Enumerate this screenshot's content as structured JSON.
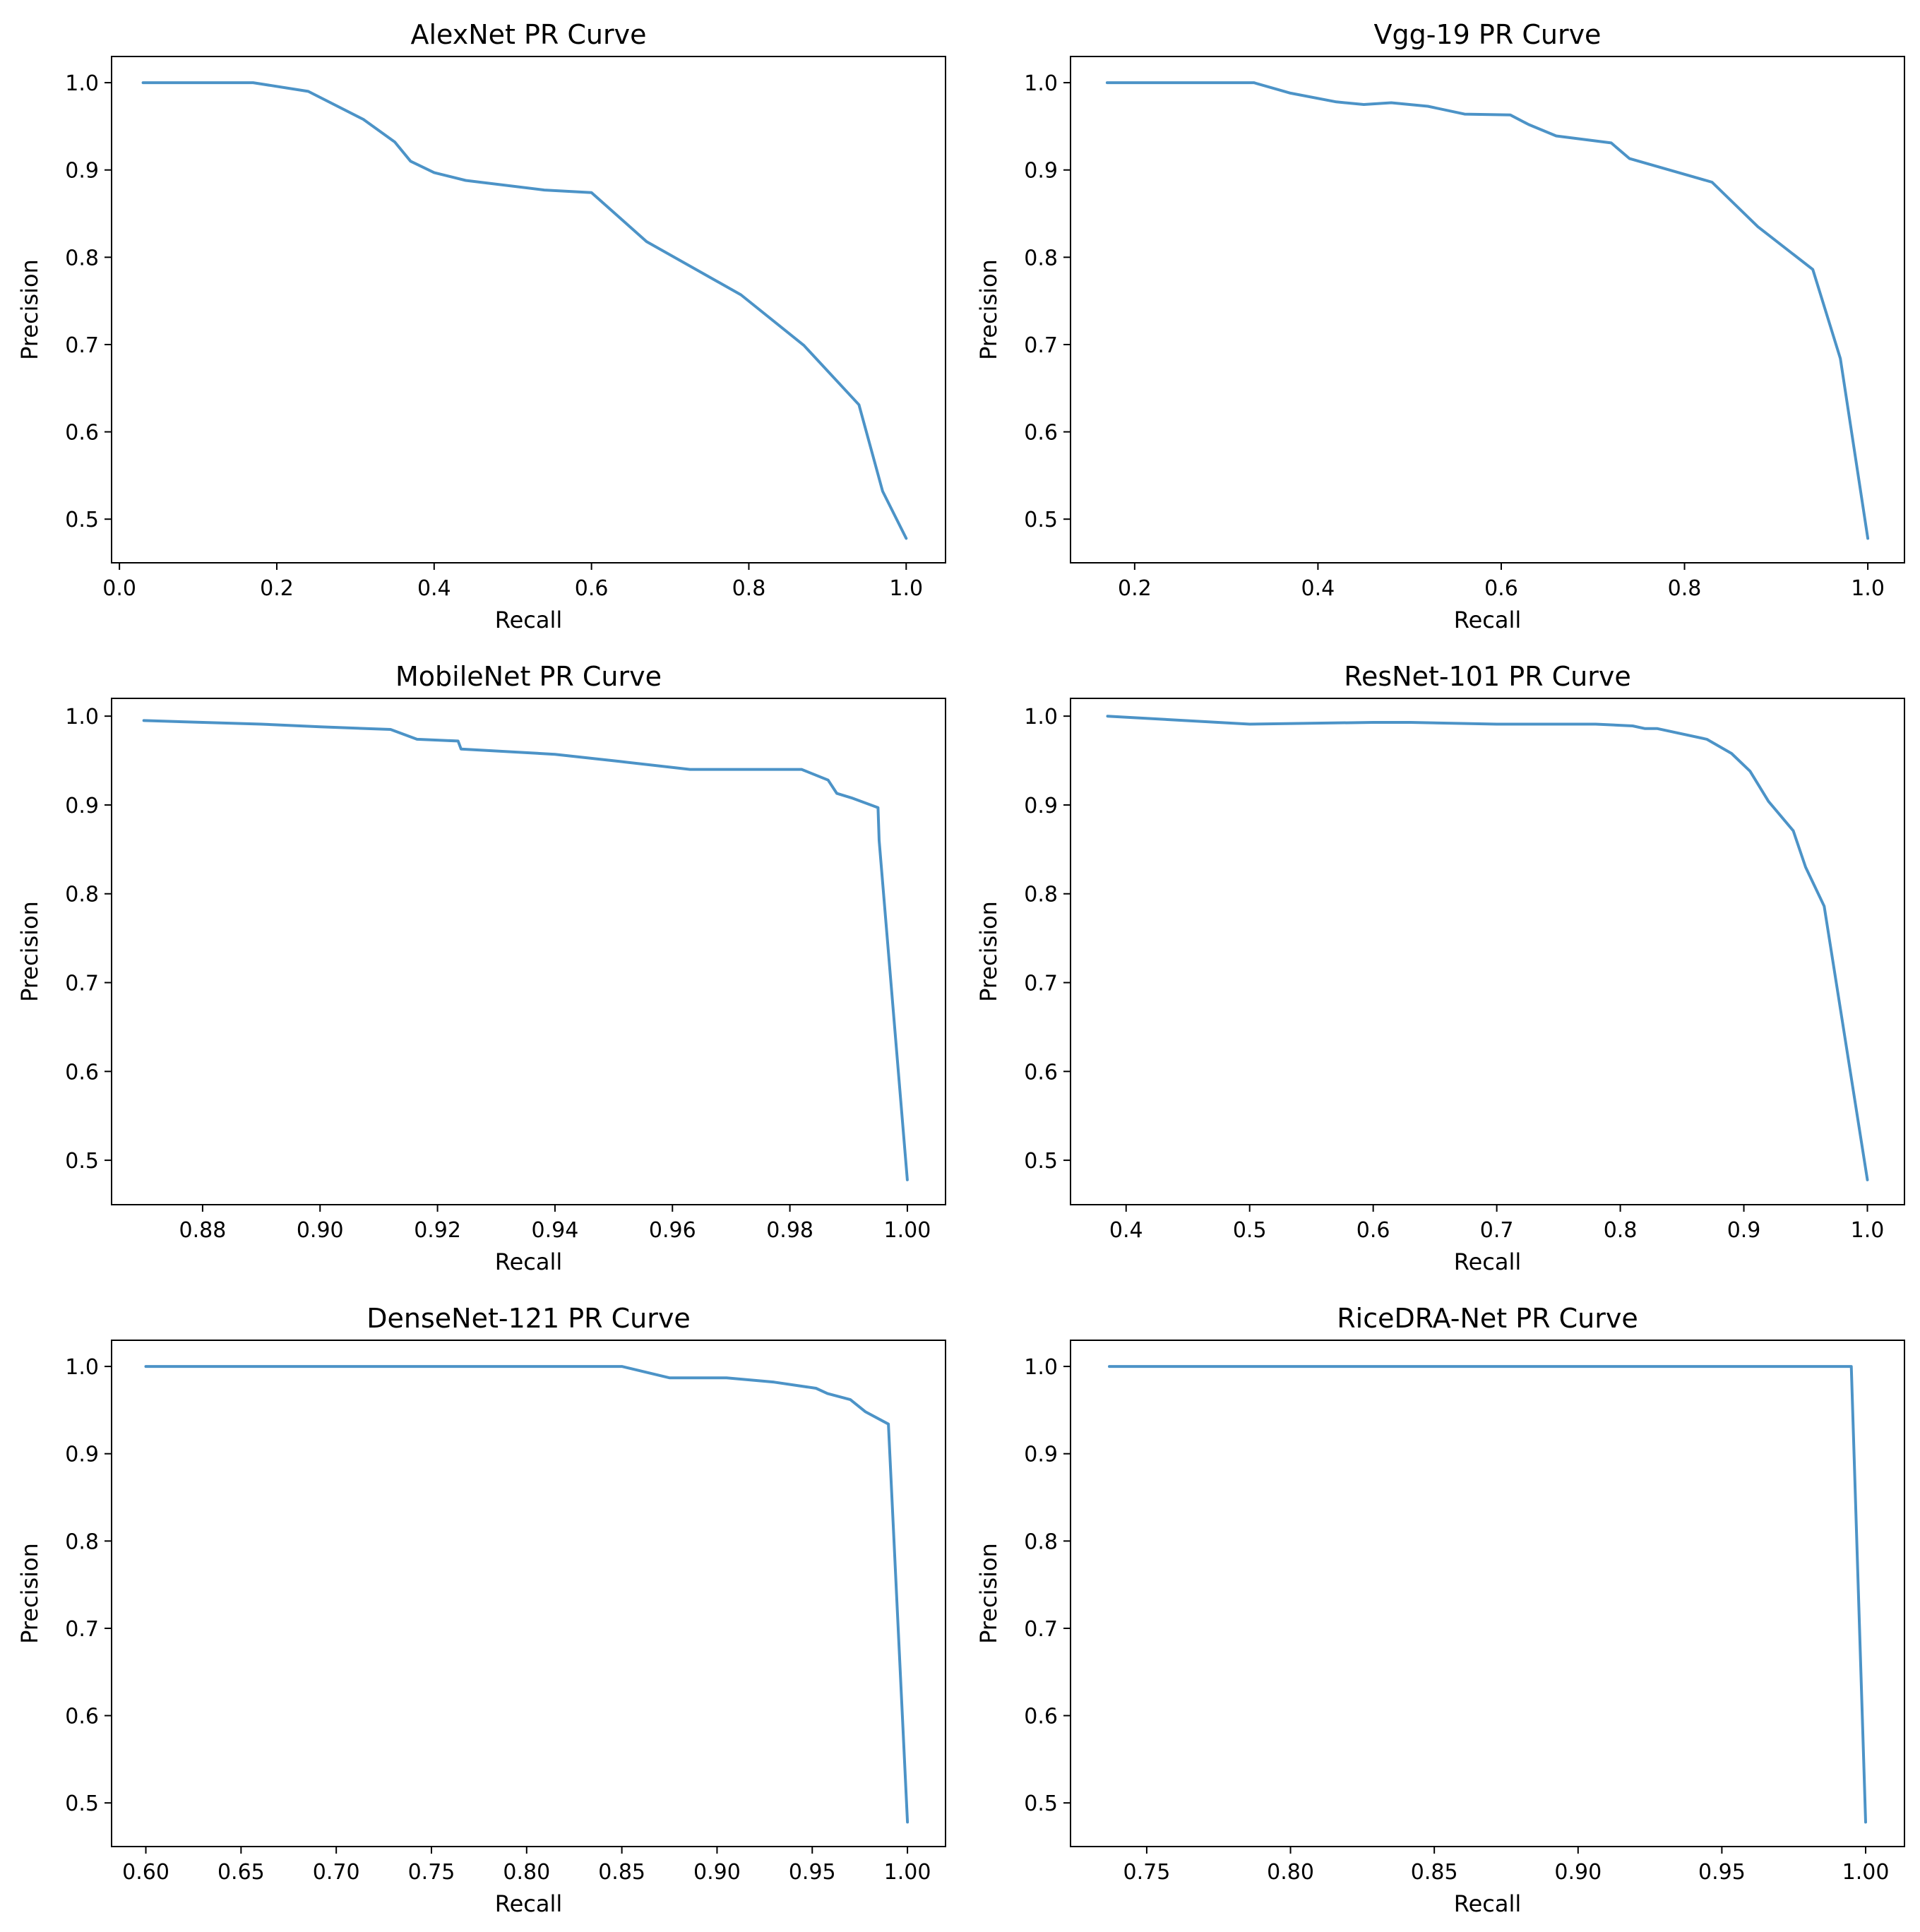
{
  "chart_data": [
    {
      "type": "line",
      "title": "AlexNet PR Curve",
      "xlabel": "Recall",
      "ylabel": "Precision",
      "xlim": [
        -0.01,
        1.05
      ],
      "ylim": [
        0.45,
        1.03
      ],
      "xticks": [
        0.0,
        0.2,
        0.4,
        0.6,
        0.8,
        1.0
      ],
      "xtick_labels": [
        "0.0",
        "0.2",
        "0.4",
        "0.6",
        "0.8",
        "1.0"
      ],
      "yticks": [
        0.5,
        0.6,
        0.7,
        0.8,
        0.9,
        1.0
      ],
      "ytick_labels": [
        "0.5",
        "0.6",
        "0.7",
        "0.8",
        "0.9",
        "1.0"
      ],
      "color": "#4c93c7",
      "x": [
        0.03,
        0.17,
        0.24,
        0.31,
        0.35,
        0.37,
        0.4,
        0.44,
        0.54,
        0.6,
        0.67,
        0.79,
        0.87,
        0.94,
        0.97,
        1.0
      ],
      "y": [
        1.0,
        1.0,
        0.99,
        0.958,
        0.932,
        0.91,
        0.897,
        0.888,
        0.877,
        0.874,
        0.818,
        0.757,
        0.699,
        0.631,
        0.532,
        0.478
      ]
    },
    {
      "type": "line",
      "title": "Vgg-19 PR Curve",
      "xlabel": "Recall",
      "ylabel": "Precision",
      "xlim": [
        0.13,
        1.04
      ],
      "ylim": [
        0.45,
        1.03
      ],
      "xticks": [
        0.2,
        0.4,
        0.6,
        0.8,
        1.0
      ],
      "xtick_labels": [
        "0.2",
        "0.4",
        "0.6",
        "0.8",
        "1.0"
      ],
      "yticks": [
        0.5,
        0.6,
        0.7,
        0.8,
        0.9,
        1.0
      ],
      "ytick_labels": [
        "0.5",
        "0.6",
        "0.7",
        "0.8",
        "0.9",
        "1.0"
      ],
      "color": "#4c93c7",
      "x": [
        0.17,
        0.33,
        0.37,
        0.42,
        0.45,
        0.48,
        0.52,
        0.56,
        0.61,
        0.63,
        0.66,
        0.72,
        0.74,
        0.83,
        0.88,
        0.94,
        0.97,
        1.0
      ],
      "y": [
        1.0,
        1.0,
        0.988,
        0.978,
        0.975,
        0.977,
        0.973,
        0.964,
        0.963,
        0.952,
        0.939,
        0.931,
        0.913,
        0.886,
        0.835,
        0.786,
        0.684,
        0.478
      ]
    },
    {
      "type": "line",
      "title": "MobileNet PR Curve",
      "xlabel": "Recall",
      "ylabel": "Precision",
      "xlim": [
        0.8645,
        1.0065
      ],
      "ylim": [
        0.45,
        1.02
      ],
      "xticks": [
        0.88,
        0.9,
        0.92,
        0.94,
        0.96,
        0.98,
        1.0
      ],
      "xtick_labels": [
        "0.88",
        "0.90",
        "0.92",
        "0.94",
        "0.96",
        "0.98",
        "1.00"
      ],
      "yticks": [
        0.5,
        0.6,
        0.7,
        0.8,
        0.9,
        1.0
      ],
      "ytick_labels": [
        "0.5",
        "0.6",
        "0.7",
        "0.8",
        "0.9",
        "1.0"
      ],
      "color": "#4c93c7",
      "x": [
        0.87,
        0.89,
        0.9,
        0.912,
        0.9165,
        0.9235,
        0.924,
        0.94,
        0.951,
        0.963,
        0.982,
        0.9865,
        0.988,
        0.9905,
        0.995,
        0.9952,
        1.0
      ],
      "y": [
        0.995,
        0.991,
        0.988,
        0.985,
        0.974,
        0.972,
        0.963,
        0.957,
        0.949,
        0.94,
        0.94,
        0.928,
        0.913,
        0.908,
        0.897,
        0.86,
        0.478
      ]
    },
    {
      "type": "line",
      "title": "ResNet-101 PR Curve",
      "xlabel": "Recall",
      "ylabel": "Precision",
      "xlim": [
        0.355,
        1.03
      ],
      "ylim": [
        0.45,
        1.02
      ],
      "xticks": [
        0.4,
        0.5,
        0.6,
        0.7,
        0.8,
        0.9,
        1.0
      ],
      "xtick_labels": [
        "0.4",
        "0.5",
        "0.6",
        "0.7",
        "0.8",
        "0.9",
        "1.0"
      ],
      "yticks": [
        0.5,
        0.6,
        0.7,
        0.8,
        0.9,
        1.0
      ],
      "ytick_labels": [
        "0.5",
        "0.6",
        "0.7",
        "0.8",
        "0.9",
        "1.0"
      ],
      "color": "#4c93c7",
      "x": [
        0.385,
        0.5,
        0.6,
        0.63,
        0.7,
        0.78,
        0.81,
        0.82,
        0.83,
        0.87,
        0.89,
        0.905,
        0.92,
        0.94,
        0.95,
        0.965,
        1.0
      ],
      "y": [
        1.0,
        0.991,
        0.993,
        0.993,
        0.991,
        0.991,
        0.989,
        0.986,
        0.986,
        0.974,
        0.958,
        0.938,
        0.904,
        0.871,
        0.83,
        0.786,
        0.478
      ]
    },
    {
      "type": "line",
      "title": "DenseNet-121 PR Curve",
      "xlabel": "Recall",
      "ylabel": "Precision",
      "xlim": [
        0.582,
        1.02
      ],
      "ylim": [
        0.45,
        1.03
      ],
      "xticks": [
        0.6,
        0.65,
        0.7,
        0.75,
        0.8,
        0.85,
        0.9,
        0.95,
        1.0
      ],
      "xtick_labels": [
        "0.60",
        "0.65",
        "0.70",
        "0.75",
        "0.80",
        "0.85",
        "0.90",
        "0.95",
        "1.00"
      ],
      "yticks": [
        0.5,
        0.6,
        0.7,
        0.8,
        0.9,
        1.0
      ],
      "ytick_labels": [
        "0.5",
        "0.6",
        "0.7",
        "0.8",
        "0.9",
        "1.0"
      ],
      "color": "#4c93c7",
      "x": [
        0.6,
        0.85,
        0.875,
        0.905,
        0.93,
        0.952,
        0.958,
        0.97,
        0.978,
        0.99,
        1.0
      ],
      "y": [
        1.0,
        1.0,
        0.987,
        0.987,
        0.982,
        0.975,
        0.969,
        0.962,
        0.948,
        0.934,
        0.478
      ]
    },
    {
      "type": "line",
      "title": "RiceDRA-Net PR Curve",
      "xlabel": "Recall",
      "ylabel": "Precision",
      "xlim": [
        0.7235,
        1.0135
      ],
      "ylim": [
        0.45,
        1.03
      ],
      "xticks": [
        0.75,
        0.8,
        0.85,
        0.9,
        0.95,
        1.0
      ],
      "xtick_labels": [
        "0.75",
        "0.80",
        "0.85",
        "0.90",
        "0.95",
        "1.00"
      ],
      "yticks": [
        0.5,
        0.6,
        0.7,
        0.8,
        0.9,
        1.0
      ],
      "ytick_labels": [
        "0.5",
        "0.6",
        "0.7",
        "0.8",
        "0.9",
        "1.0"
      ],
      "color": "#4c93c7",
      "x": [
        0.737,
        0.995,
        1.0
      ],
      "y": [
        1.0,
        1.0,
        0.478
      ]
    }
  ]
}
